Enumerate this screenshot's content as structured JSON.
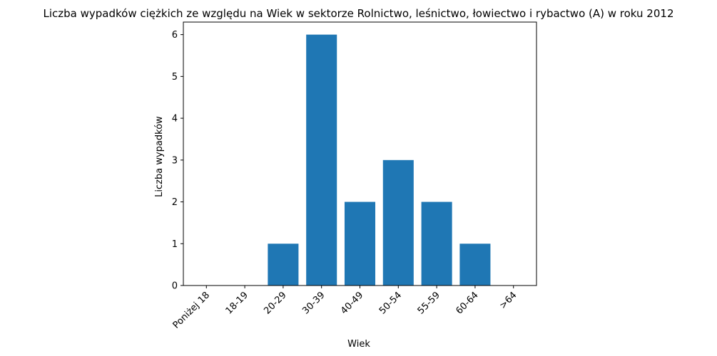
{
  "chart_data": {
    "type": "bar",
    "title": "Liczba wypadków ciężkich ze względu na Wiek w sektorze Rolnictwo, leśnictwo, łowiectwo i rybactwo (A) w roku 2012",
    "xlabel": "Wiek",
    "ylabel": "Liczba wypadków",
    "categories": [
      "Poniżej 18",
      "18-19",
      "20-29",
      "30-39",
      "40-49",
      "50-54",
      "55-59",
      "60-64",
      ">64"
    ],
    "values": [
      0,
      0,
      1,
      6,
      2,
      3,
      2,
      1,
      0
    ],
    "ylim": [
      0,
      6.3
    ],
    "yticks": [
      0,
      1,
      2,
      3,
      4,
      5,
      6
    ],
    "bar_color": "#1f77b4",
    "grid": false,
    "xtick_rotation": 45
  }
}
